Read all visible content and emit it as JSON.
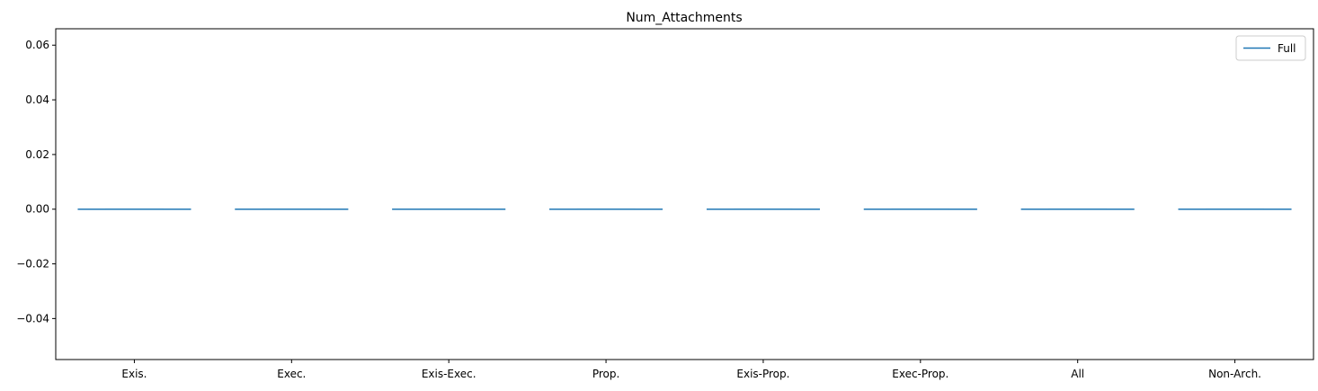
{
  "chart_data": {
    "type": "box",
    "title": "Num_Attachments",
    "xlabel": "",
    "ylabel": "",
    "categories": [
      "Exis.",
      "Exec.",
      "Exis-Exec.",
      "Prop.",
      "Exis-Prop.",
      "Exec-Prop.",
      "All",
      "Non-Arch."
    ],
    "series": [
      {
        "name": "Full",
        "color": "#1f77b4",
        "values": [
          {
            "min": 0,
            "q1": 0,
            "median": 0,
            "q3": 0,
            "max": 0
          },
          {
            "min": 0,
            "q1": 0,
            "median": 0,
            "q3": 0,
            "max": 0
          },
          {
            "min": 0,
            "q1": 0,
            "median": 0,
            "q3": 0,
            "max": 0
          },
          {
            "min": 0,
            "q1": 0,
            "median": 0,
            "q3": 0,
            "max": 0
          },
          {
            "min": 0,
            "q1": 0,
            "median": 0,
            "q3": 0,
            "max": 0
          },
          {
            "min": 0,
            "q1": 0,
            "median": 0,
            "q3": 0,
            "max": 0
          },
          {
            "min": 0,
            "q1": 0,
            "median": 0,
            "q3": 0,
            "max": 0
          },
          {
            "min": 0,
            "q1": 0,
            "median": 0,
            "q3": 0,
            "max": 0
          }
        ]
      }
    ],
    "ylim": [
      -0.055,
      0.066
    ],
    "yticks": [
      -0.04,
      -0.02,
      0.0,
      0.02,
      0.04,
      0.06
    ],
    "ytick_labels": [
      "−0.04",
      "−0.02",
      "0.00",
      "0.02",
      "0.04",
      "0.06"
    ],
    "grid": false,
    "legend_position": "top-right"
  }
}
